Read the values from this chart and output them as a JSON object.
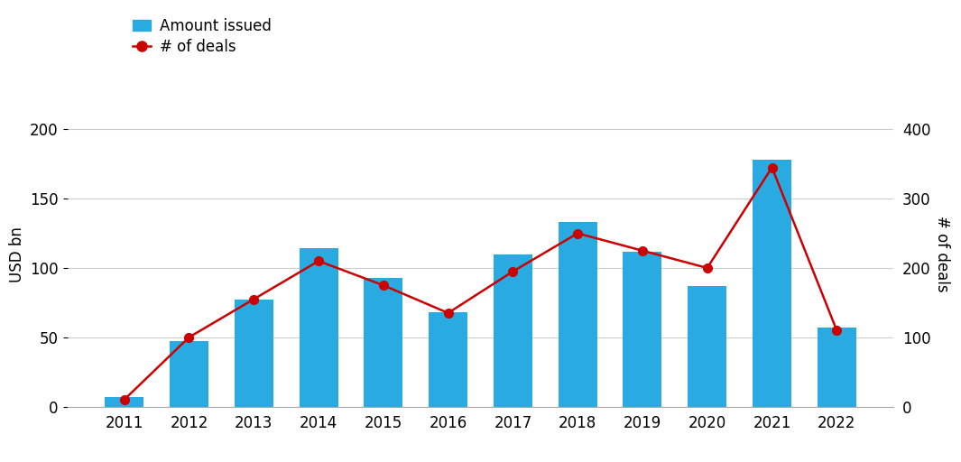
{
  "years": [
    2011,
    2012,
    2013,
    2014,
    2015,
    2016,
    2017,
    2018,
    2019,
    2020,
    2021,
    2022
  ],
  "amount_issued": [
    7,
    47,
    77,
    114,
    93,
    68,
    110,
    133,
    112,
    87,
    178,
    57
  ],
  "num_deals": [
    10,
    100,
    155,
    210,
    175,
    135,
    195,
    250,
    225,
    200,
    345,
    110
  ],
  "bar_color": "#29ABE2",
  "line_color": "#CC0000",
  "marker_color": "#CC0000",
  "background_color": "#FFFFFF",
  "grid_color": "#CCCCCC",
  "ylabel_left": "USD bn",
  "ylabel_right": "# of deals",
  "ylim_left": [
    0,
    220
  ],
  "ylim_right": [
    0,
    440
  ],
  "yticks_left": [
    0,
    50,
    100,
    150,
    200
  ],
  "yticks_right": [
    0,
    100,
    200,
    300,
    400
  ],
  "legend_amount": "Amount issued",
  "legend_deals": "# of deals",
  "axis_fontsize": 12,
  "tick_fontsize": 12,
  "legend_fontsize": 12
}
